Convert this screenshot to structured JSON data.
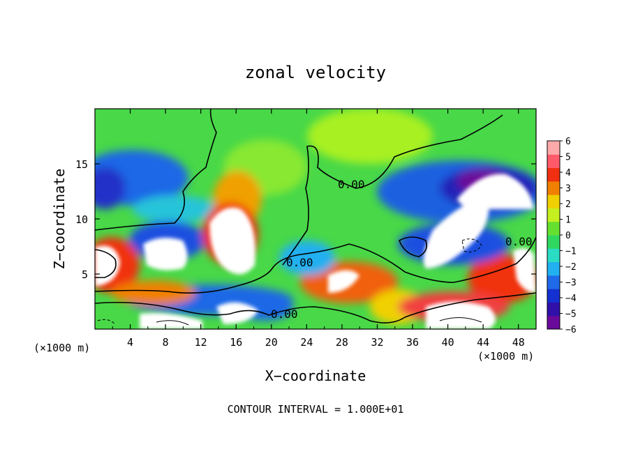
{
  "chart_data": {
    "type": "heatmap",
    "title": "zonal velocity",
    "xlabel": "X−coordinate",
    "ylabel": "Z−coordinate",
    "x_unit_left": "(×1000 m)",
    "x_unit_right": "(×1000 m)",
    "footer": "CONTOUR INTERVAL = 1.000E+01",
    "xlim": [
      0,
      50
    ],
    "ylim": [
      0,
      20
    ],
    "x_ticks": [
      4,
      8,
      12,
      16,
      20,
      24,
      28,
      32,
      36,
      40,
      44,
      48
    ],
    "y_ticks": [
      5,
      10,
      15
    ],
    "contour_labels": [
      "0.00",
      "0.00",
      "0.00",
      "0.00"
    ],
    "colorbar": {
      "ticks": [
        6,
        5,
        4,
        3,
        2,
        1,
        0,
        -1,
        -2,
        -3,
        -4,
        -5,
        -6
      ],
      "tick_labels": [
        "6",
        "5",
        "4",
        "3",
        "2",
        "1",
        "0",
        "−1",
        "−2",
        "−3",
        "−4",
        "−5",
        "−6"
      ],
      "colors": [
        "#6a0a9a",
        "#3010a8",
        "#1530d0",
        "#1f6ae8",
        "#22b0f0",
        "#2adcc4",
        "#30d860",
        "#66e030",
        "#c4f020",
        "#f0d000",
        "#f08000",
        "#f03010",
        "#ff5a6a",
        "#ffaaaa"
      ]
    },
    "grid": false
  }
}
